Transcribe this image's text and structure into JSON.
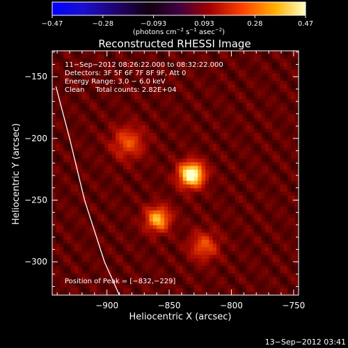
{
  "colorbar": {
    "ticks": [
      "−0.47",
      "−0.28",
      "−0.093",
      "0.093",
      "0.28",
      "0.47"
    ],
    "unit_label": "(photons cm",
    "unit_exp1": "−2",
    "unit_mid": " s",
    "unit_exp2": "−1",
    "unit_mid2": " asec",
    "unit_exp3": "−2",
    "unit_close": ")",
    "min": -0.47,
    "max": 0.47,
    "colormap": [
      "#0000ff",
      "#2000a0",
      "#000000",
      "#600060",
      "#b00000",
      "#ff6000",
      "#ffc000",
      "#ffffc0"
    ]
  },
  "image_info": {
    "time_range": "11−Sep−2012 08:26:22.000 to 08:32:22.000",
    "detectors": "Detectors: 3F 5F 6F 7F 8F 9F, Att 0",
    "energy": "Energy Range: 3.0 − 6.0 keV",
    "clean": "Clean     Total counts: 2.82E+04",
    "peak": "Position of Peak = [−832,−229]"
  },
  "footer": {
    "date": "13−Sep−2012 03:41"
  },
  "chart_data": {
    "type": "heatmap",
    "title": "Reconstructed RHESSI Image",
    "xlabel": "Heliocentric X (arcsec)",
    "ylabel": "Heliocentric Y (arcsec)",
    "xlim": [
      -944,
      -746
    ],
    "ylim": [
      -327,
      -129
    ],
    "x_ticks": [
      -900,
      -850,
      -800,
      -750
    ],
    "y_ticks": [
      -150,
      -200,
      -250,
      -300
    ],
    "x_tick_labels": [
      "−900",
      "−850",
      "−800",
      "−750"
    ],
    "y_tick_labels": [
      "−150",
      "−200",
      "−250",
      "−300"
    ],
    "sources": [
      {
        "x": -832,
        "y": -229,
        "intensity": 0.47,
        "sigma": 7
      },
      {
        "x": -859,
        "y": -265,
        "intensity": 0.3,
        "sigma": 7
      },
      {
        "x": -822,
        "y": -287,
        "intensity": 0.18,
        "sigma": 8
      },
      {
        "x": -883,
        "y": -203,
        "intensity": 0.18,
        "sigma": 9
      }
    ],
    "limb_curve": [
      [
        -941,
        -158
      ],
      [
        -930,
        -200
      ],
      [
        -918,
        -250
      ],
      [
        -902,
        -300
      ],
      [
        -890,
        -327
      ]
    ]
  }
}
